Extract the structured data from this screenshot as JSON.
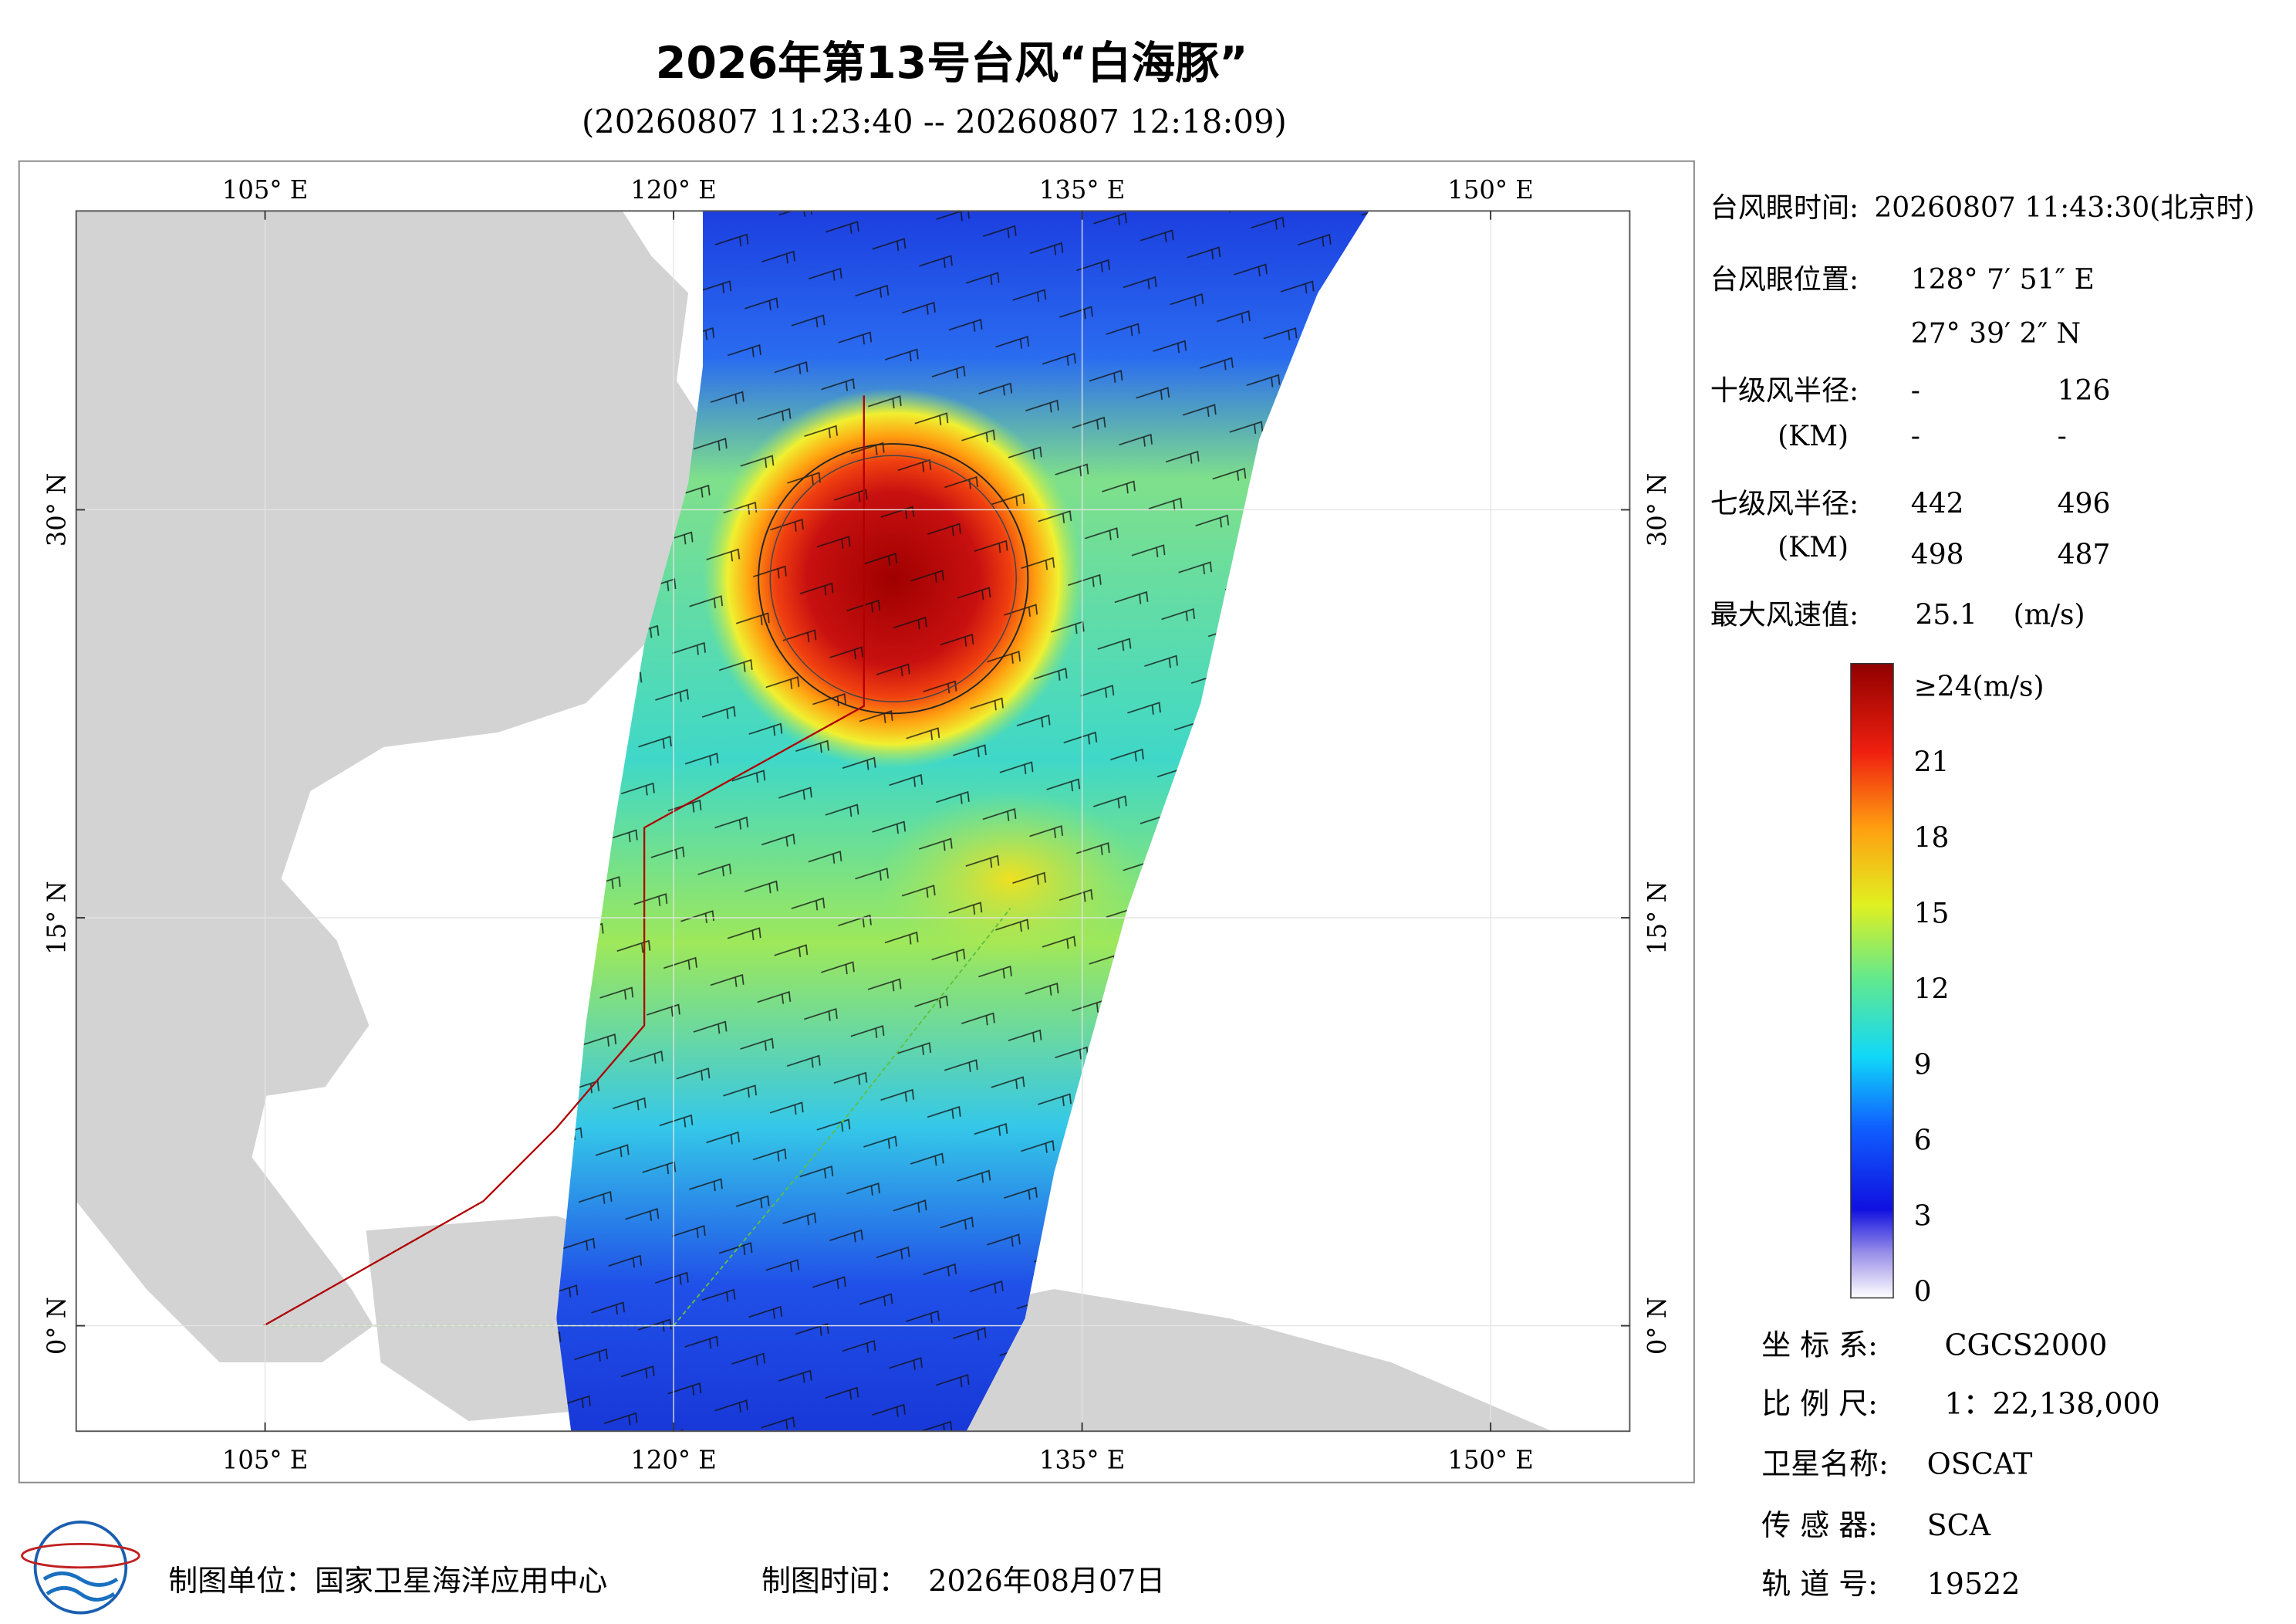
{
  "header": {
    "title": "2026年第13号台风“白海豚”",
    "subtitle": "(20260807 11:23:40 -- 20260807 12:18:09)"
  },
  "map": {
    "lon_labels": [
      "105° E",
      "120° E",
      "135° E",
      "150° E"
    ],
    "lat_labels": [
      "30° N",
      "15° N",
      "0° N"
    ]
  },
  "info": {
    "eye_time_label": "台风眼时间:",
    "eye_time": "20260807 11:43:30(北京时)",
    "eye_pos_label": "台风眼位置:",
    "eye_lon": "128° 7′ 51″ E",
    "eye_lat": "27° 39′ 2″ N",
    "r10_label": "十级风半径:",
    "km_label": "(KM)",
    "r10": [
      "-",
      126,
      "-",
      "-"
    ],
    "r7_label": "七级风半径:",
    "r7": [
      442,
      496,
      498,
      487
    ],
    "max_label": "最大风速值:",
    "max_value": 25.1,
    "max_unit": "(m/s)"
  },
  "colorbar": {
    "labels": [
      "≥24(m/s)",
      21,
      18,
      15,
      12,
      9,
      6,
      3,
      0
    ]
  },
  "meta": {
    "crs_label": "坐 标 系:",
    "crs": "CGCS2000",
    "scale_label": "比 例 尺:",
    "scale": "1：22,138,000",
    "satellite_label": "卫星名称:",
    "satellite": "OSCAT",
    "sensor_label": "传 感 器:",
    "sensor": "SCA",
    "orbit_label": "轨 道 号:",
    "orbit": "19522"
  },
  "footer": {
    "producer": "制图单位：国家卫星海洋应用中心",
    "time_label": "制图时间：",
    "time": "2026年08月07日"
  }
}
